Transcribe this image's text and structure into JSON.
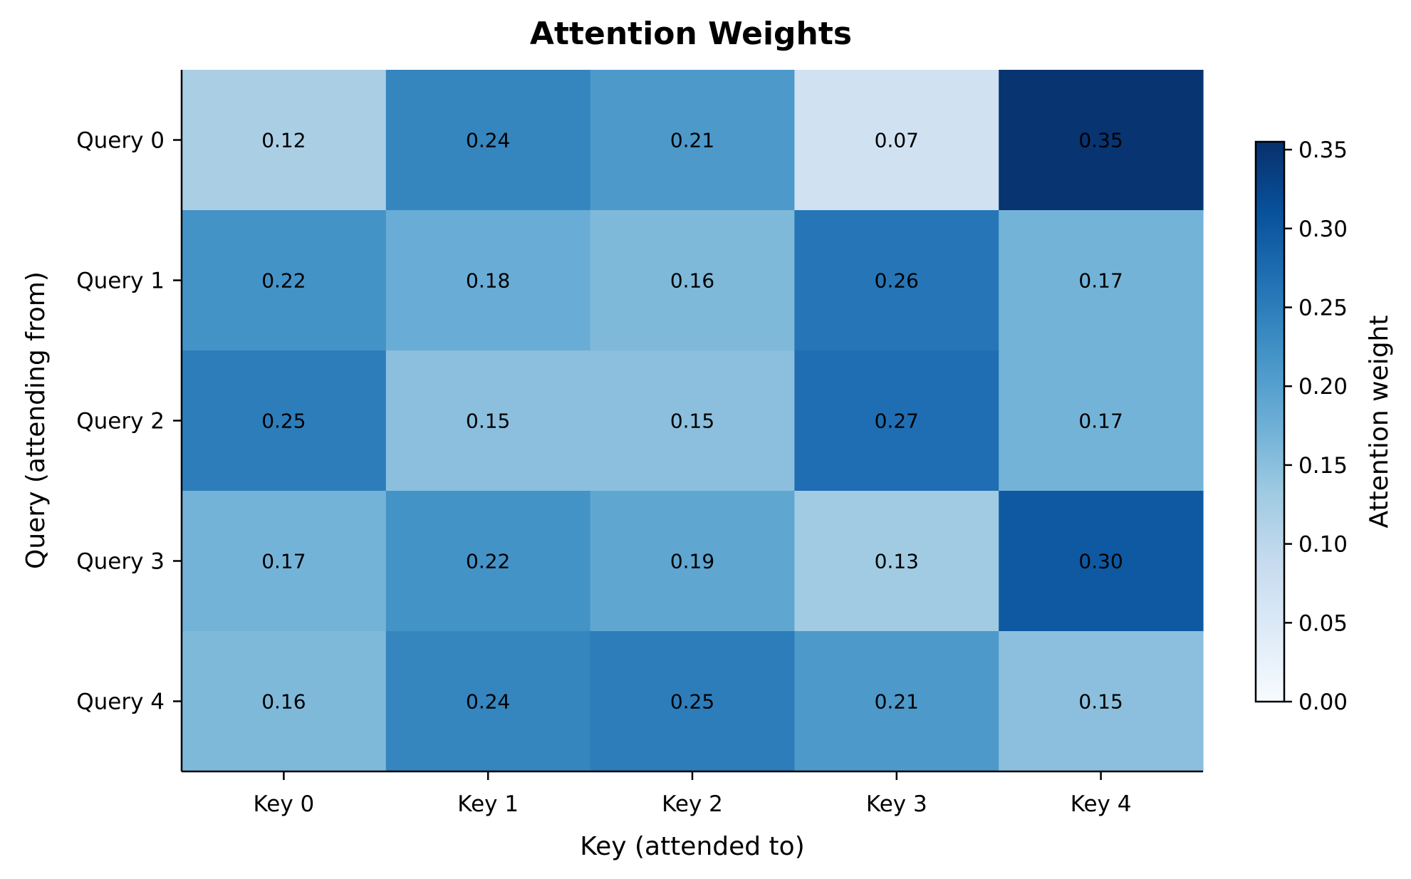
{
  "chart_data": {
    "type": "heatmap",
    "title": "Attention Weights",
    "xlabel": "Key (attended to)",
    "ylabel": "Query (attending from)",
    "x_categories": [
      "Key 0",
      "Key 1",
      "Key 2",
      "Key 3",
      "Key 4"
    ],
    "y_categories": [
      "Query 0",
      "Query 1",
      "Query 2",
      "Query 3",
      "Query 4"
    ],
    "values": [
      [
        0.12,
        0.24,
        0.21,
        0.07,
        0.35
      ],
      [
        0.22,
        0.18,
        0.16,
        0.26,
        0.17
      ],
      [
        0.25,
        0.15,
        0.15,
        0.27,
        0.17
      ],
      [
        0.17,
        0.22,
        0.19,
        0.13,
        0.3
      ],
      [
        0.16,
        0.24,
        0.25,
        0.21,
        0.15
      ]
    ],
    "cell_labels": [
      [
        "0.12",
        "0.24",
        "0.21",
        "0.07",
        "0.35"
      ],
      [
        "0.22",
        "0.18",
        "0.16",
        "0.26",
        "0.17"
      ],
      [
        "0.25",
        "0.15",
        "0.15",
        "0.27",
        "0.17"
      ],
      [
        "0.17",
        "0.22",
        "0.19",
        "0.13",
        "0.30"
      ],
      [
        "0.16",
        "0.24",
        "0.25",
        "0.21",
        "0.15"
      ]
    ],
    "colorbar": {
      "label": "Attention weight",
      "range": [
        0.0,
        0.355
      ],
      "ticks": [
        0.0,
        0.05,
        0.1,
        0.15,
        0.2,
        0.25,
        0.3,
        0.35
      ],
      "tick_labels": [
        "0.00",
        "0.05",
        "0.10",
        "0.15",
        "0.20",
        "0.25",
        "0.30",
        "0.35"
      ],
      "colormap": "Blues",
      "color_stops": [
        "#f7fbff",
        "#deebf7",
        "#c6dbef",
        "#9ecae1",
        "#6baed6",
        "#4292c6",
        "#2171b5",
        "#08519c",
        "#08306b"
      ]
    },
    "cell_text_color": "#000000",
    "grid": false
  }
}
